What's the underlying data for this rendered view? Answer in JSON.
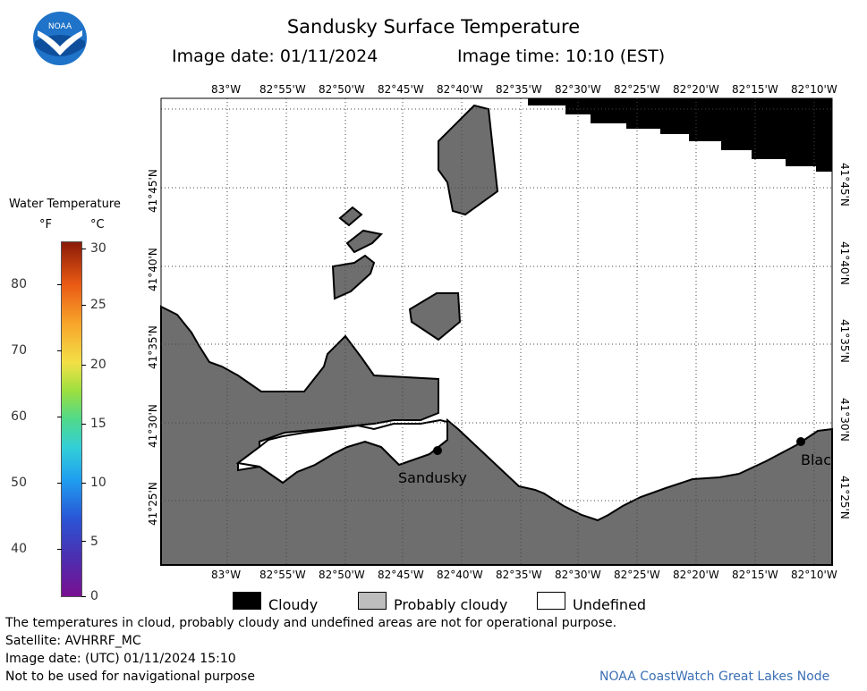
{
  "header": {
    "title": "Sandusky Surface Temperature",
    "image_date": "Image date: 01/11/2024",
    "image_time": "Image time: 10:10 (EST)"
  },
  "logo": {
    "text": "NOAA",
    "icon": "noaa-logo-icon"
  },
  "colorbar": {
    "title": "Water Temperature",
    "unit_f": "°F",
    "unit_c": "°C",
    "f_labels": [
      "40",
      "50",
      "60",
      "70",
      "80"
    ],
    "c_labels": [
      "0",
      "5",
      "10",
      "15",
      "20",
      "25",
      "30"
    ]
  },
  "map": {
    "lon_labels": [
      "83°W",
      "82°55'W",
      "82°50'W",
      "82°45'W",
      "82°40'W",
      "82°35'W",
      "82°30'W",
      "82°25'W",
      "82°20'W",
      "82°15'W",
      "82°10'W"
    ],
    "lat_labels": [
      "41°45'N",
      "41°40'N",
      "41°35'N",
      "41°30'N",
      "41°25'N"
    ],
    "cities": [
      "Sandusky",
      "Blac"
    ],
    "land_color": "#6e6e6e",
    "cloud_color": "#000000"
  },
  "legend": {
    "items": [
      {
        "label": "Cloudy",
        "color": "#000000"
      },
      {
        "label": "Probably cloudy",
        "color": "#bdbdbd"
      },
      {
        "label": "Undefined",
        "color": "#ffffff"
      }
    ]
  },
  "footer": {
    "note": "The temperatures in cloud, probably cloudy and undefined areas are not for operational purpose.",
    "satellite": "Satellite: AVHRRF_MC",
    "utc_date": "Image date: (UTC) 01/11/2024  15:10",
    "nav_warning": "Not to be used for navigational purpose",
    "credit": "NOAA CoastWatch Great Lakes Node"
  }
}
